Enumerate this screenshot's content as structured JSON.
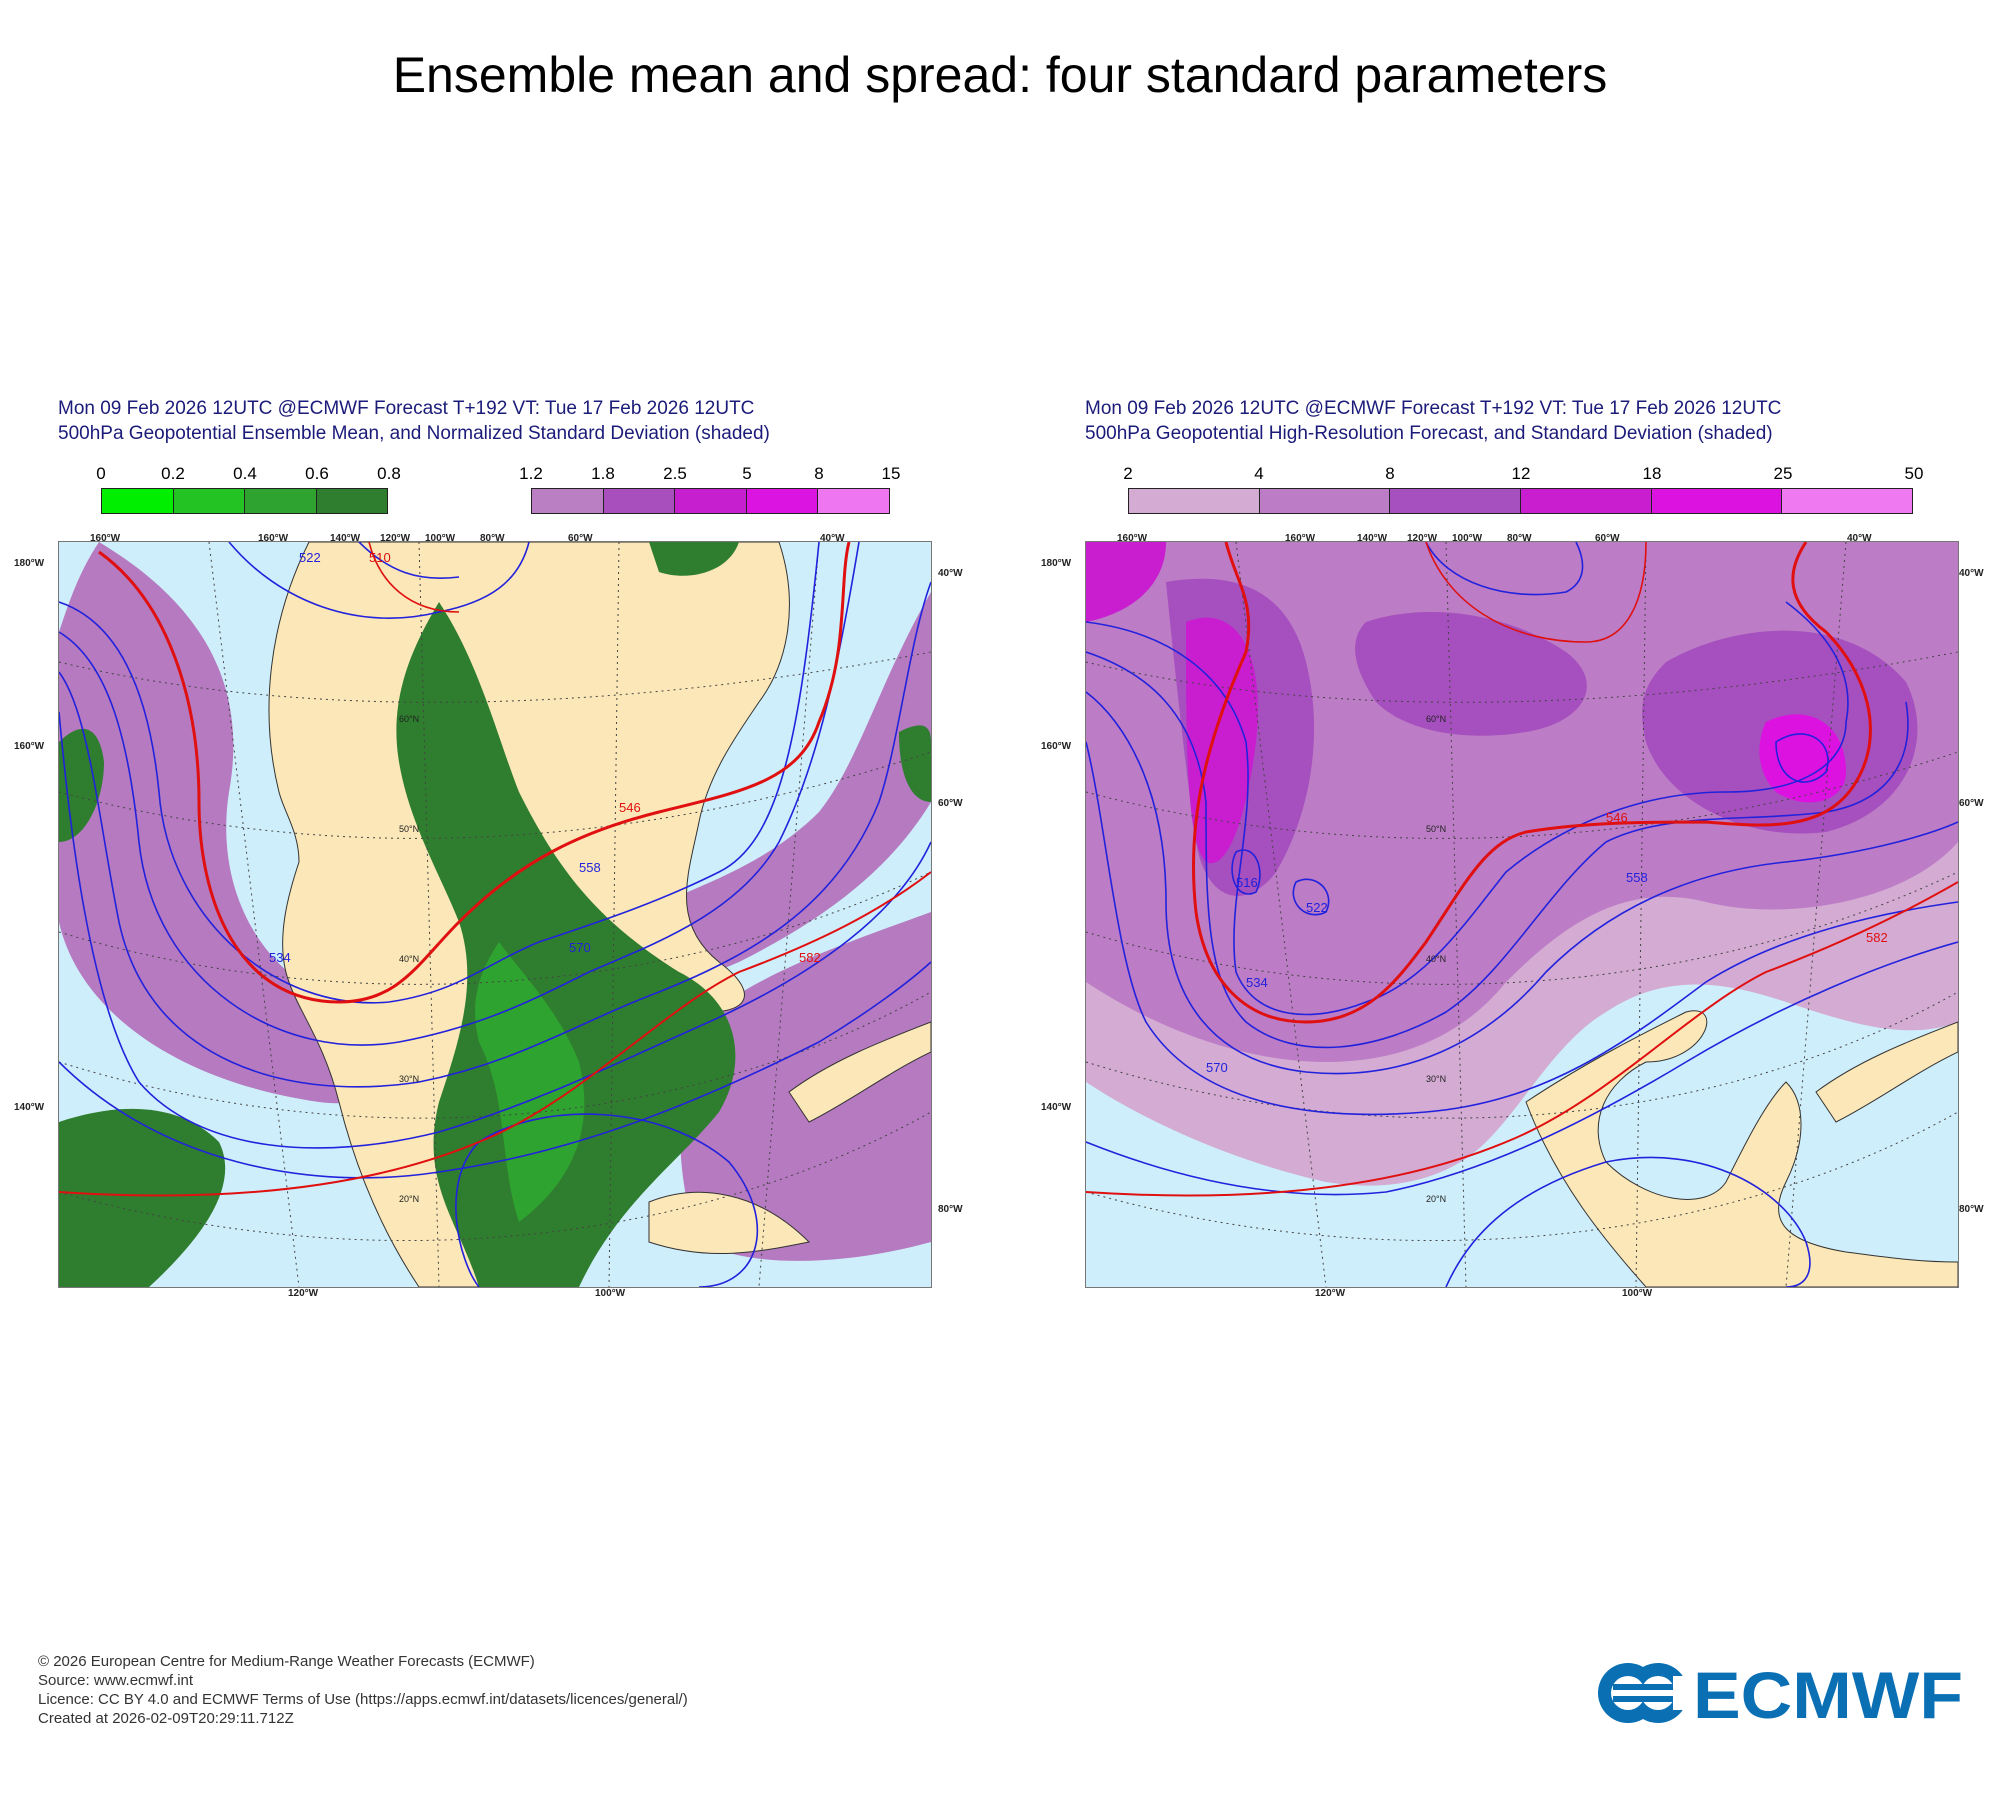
{
  "page": {
    "title": "Ensemble mean and spread: four standard parameters"
  },
  "panels": [
    {
      "title_line1": "Mon 09 Feb 2026 12UTC @ECMWF Forecast T+192 VT: Tue 17 Feb 2026 12UTC",
      "title_line2": "500hPa Geopotential Ensemble Mean, and Normalized Standard Deviation (shaded)",
      "legend_green": {
        "ticks": [
          "0",
          "0.2",
          "0.4",
          "0.6",
          "0.8"
        ],
        "colors": [
          "#00ee00",
          "#22c322",
          "#2fa32f",
          "#2f7d2f"
        ]
      },
      "legend_purple": {
        "ticks": [
          "1.2",
          "1.8",
          "2.5",
          "5",
          "8",
          "15"
        ],
        "colors": [
          "#b97fc2",
          "#a84fbd",
          "#c61fcf",
          "#dc14e2",
          "#ef76f1"
        ]
      },
      "contours": [
        "510",
        "522",
        "534",
        "546",
        "558",
        "570",
        "582"
      ],
      "lat_labels": [
        "60°N",
        "50°N",
        "40°N",
        "30°N",
        "20°N"
      ],
      "top_lon_labels": [
        "160°W",
        "160°W",
        "140°W",
        "120°W",
        "100°W",
        "80°W",
        "60°W",
        "40°W"
      ],
      "bottom_lon_labels": [
        "120°W",
        "100°W"
      ],
      "left_lon_labels": [
        "180°W",
        "160°W",
        "140°W"
      ],
      "right_lon_labels": [
        "40°W",
        "60°W",
        "80°W"
      ]
    },
    {
      "title_line1": "Mon 09 Feb 2026 12UTC @ECMWF Forecast T+192 VT: Tue 17 Feb 2026 12UTC",
      "title_line2": "500hPa Geopotential High-Resolution Forecast, and Standard Deviation (shaded)",
      "legend": {
        "ticks": [
          "2",
          "4",
          "8",
          "12",
          "18",
          "25",
          "50"
        ],
        "colors": [
          "#d3abd3",
          "#bc7cc6",
          "#a64fbe",
          "#c81ed0",
          "#dc12e0",
          "#ee79f0"
        ]
      },
      "contours": [
        "516",
        "522",
        "534",
        "546",
        "558",
        "570",
        "582"
      ],
      "lat_labels": [
        "60°N",
        "50°N",
        "40°N",
        "30°N",
        "20°N"
      ],
      "top_lon_labels": [
        "160°W",
        "160°W",
        "140°W",
        "120°W",
        "100°W",
        "80°W",
        "60°W",
        "40°W"
      ],
      "bottom_lon_labels": [
        "120°W",
        "100°W"
      ],
      "left_lon_labels": [
        "180°W",
        "160°W",
        "140°W"
      ],
      "right_lon_labels": [
        "40°W",
        "60°W",
        "80°W"
      ]
    }
  ],
  "footer": {
    "line1": "© 2026 European Centre for Medium-Range Weather Forecasts (ECMWF)",
    "line2": "Source: www.ecmwf.int",
    "line3": "Licence: CC BY 4.0 and ECMWF Terms of Use (https://apps.ecmwf.int/datasets/licences/general/)",
    "line4": "Created at 2026-02-09T20:29:11.712Z"
  },
  "logo": {
    "text": "ECMWF",
    "color": "#0a6fb3"
  },
  "colors": {
    "contour_blue": "#2222dd",
    "contour_red": "#e01010",
    "ocean": "#cfeefb",
    "land": "#fbe7b8"
  }
}
